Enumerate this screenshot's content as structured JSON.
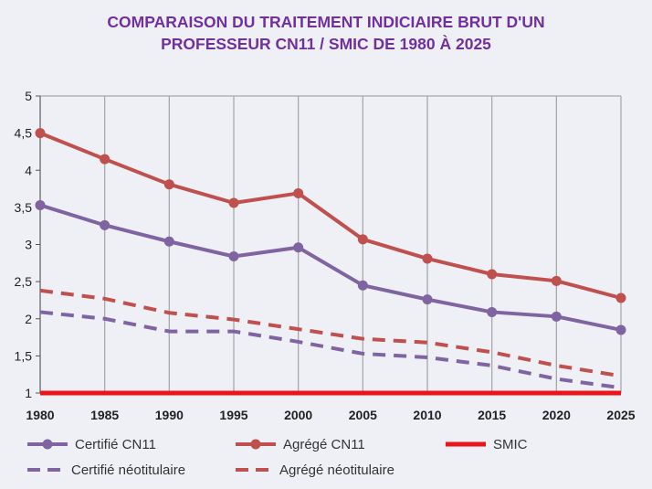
{
  "chart_data": {
    "type": "line",
    "title": "COMPARAISON DU TRAITEMENT INDICIAIRE BRUT D'UN PROFESSEUR CN11 / SMIC DE 1980 À 2025",
    "title_lines": [
      "COMPARAISON DU TRAITEMENT INDICIAIRE BRUT D'UN",
      "PROFESSEUR CN11 / SMIC DE 1980 À 2025"
    ],
    "title_color": "#7030a0",
    "xlabel": "",
    "ylabel": "",
    "x": [
      1980,
      1985,
      1990,
      1995,
      2000,
      2005,
      2010,
      2015,
      2020,
      2025
    ],
    "x_tick_labels": [
      "1980",
      "1985",
      "1990",
      "1995",
      "2000",
      "2005",
      "2010",
      "2015",
      "2020",
      "2025"
    ],
    "ylim": [
      1,
      5
    ],
    "y_ticks": [
      1,
      1.5,
      2,
      2.5,
      3,
      3.5,
      4,
      4.5,
      5
    ],
    "y_tick_labels": [
      "1",
      "1,5",
      "2",
      "2,5",
      "3",
      "3,5",
      "4",
      "4,5",
      "5"
    ],
    "grid": "vertical",
    "legend_position": "bottom",
    "series": [
      {
        "name": "Certifié CN11",
        "color": "#8064a2",
        "style": "solid-marker",
        "values": [
          3.53,
          3.26,
          3.04,
          2.84,
          2.96,
          2.45,
          2.26,
          2.09,
          2.03,
          1.85
        ]
      },
      {
        "name": "Agrégé CN11",
        "color": "#c0504d",
        "style": "solid-marker",
        "values": [
          4.5,
          4.15,
          3.81,
          3.56,
          3.69,
          3.07,
          2.81,
          2.6,
          2.51,
          2.28
        ]
      },
      {
        "name": "SMIC",
        "color": "#e8151b",
        "style": "solid-thick",
        "values": [
          1,
          1,
          1,
          1,
          1,
          1,
          1,
          1,
          1,
          1
        ]
      },
      {
        "name": "Certifié néotitulaire",
        "color": "#8064a2",
        "style": "dashed",
        "values": [
          2.09,
          2.0,
          1.83,
          1.83,
          1.69,
          1.53,
          1.48,
          1.37,
          1.19,
          1.07
        ]
      },
      {
        "name": "Agrégé néotitulaire",
        "color": "#c0504d",
        "style": "dashed",
        "values": [
          2.38,
          2.27,
          2.08,
          1.99,
          1.86,
          1.73,
          1.68,
          1.55,
          1.37,
          1.23
        ]
      }
    ]
  }
}
